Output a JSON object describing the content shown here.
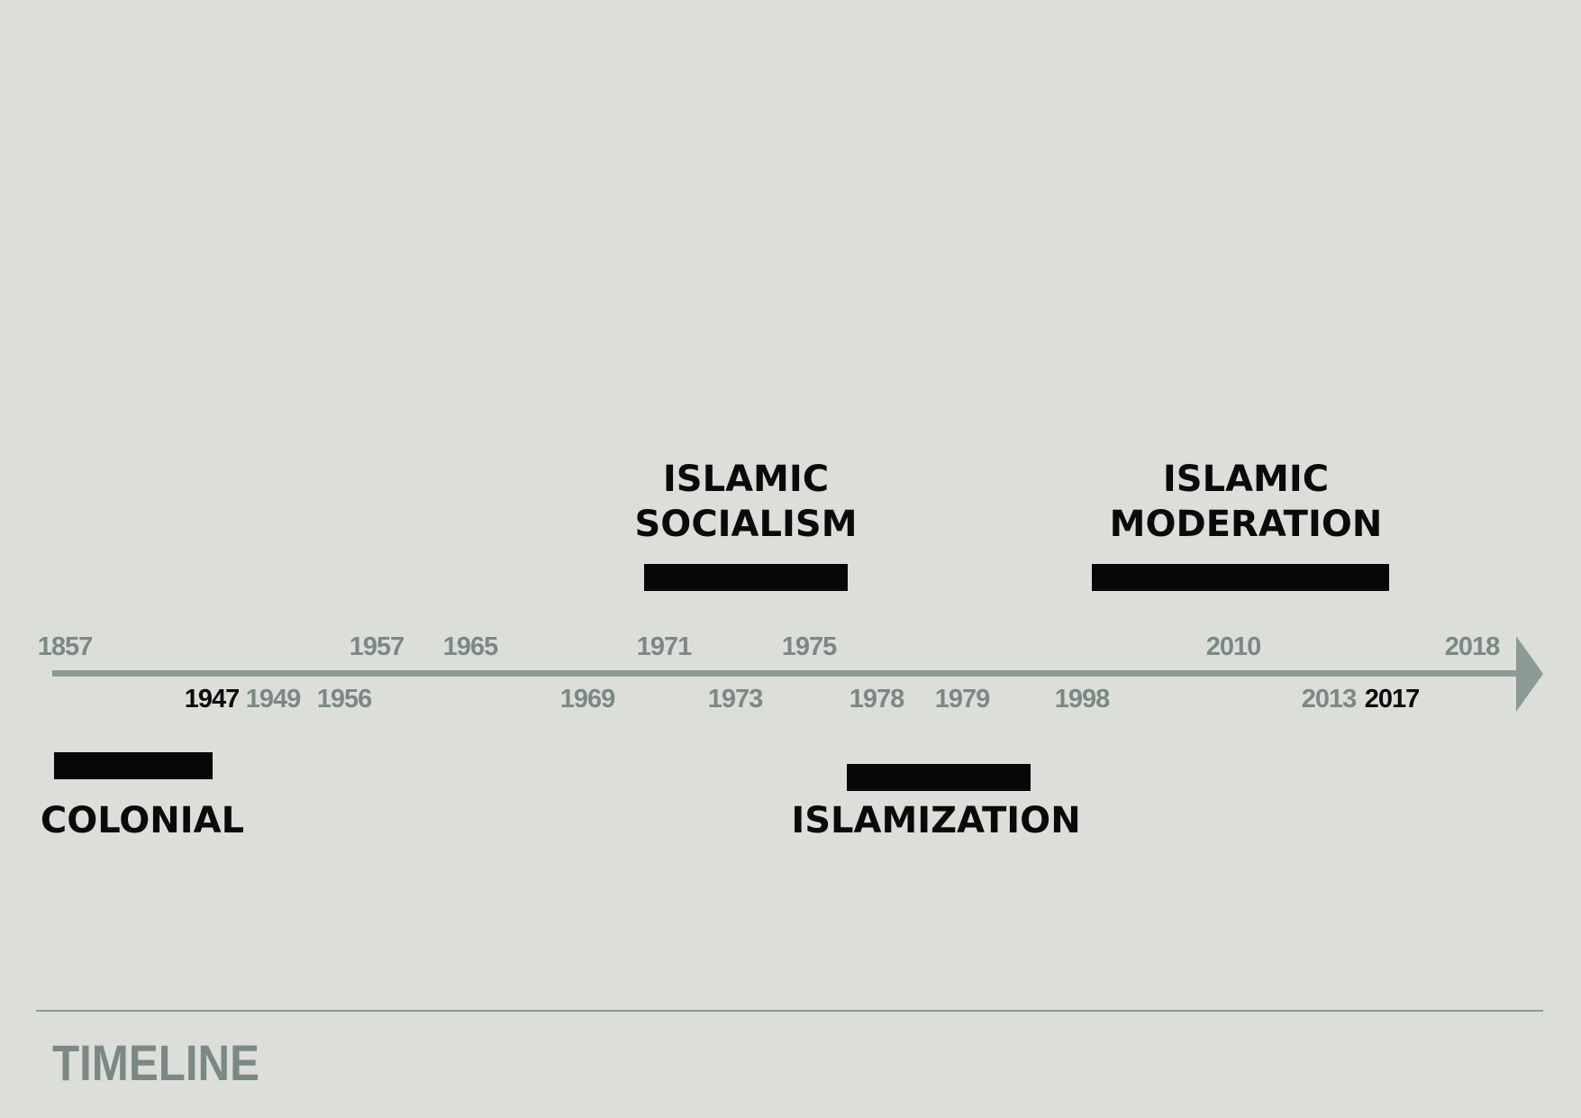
{
  "timeline": {
    "years_top": [
      {
        "label": "1857",
        "id": "1857"
      },
      {
        "label": "1957",
        "id": "1957"
      },
      {
        "label": "1965",
        "id": "1965"
      },
      {
        "label": "1971",
        "id": "1971"
      },
      {
        "label": "1975",
        "id": "1975"
      },
      {
        "label": "2010",
        "id": "2010"
      },
      {
        "label": "2018",
        "id": "2018"
      }
    ],
    "years_bottom": [
      {
        "label": "1947",
        "id": "1947",
        "emphasis": true
      },
      {
        "label": "1949",
        "id": "1949"
      },
      {
        "label": "1956",
        "id": "1956"
      },
      {
        "label": "1969",
        "id": "1969"
      },
      {
        "label": "1973",
        "id": "1973"
      },
      {
        "label": "1978",
        "id": "1978"
      },
      {
        "label": "1979",
        "id": "1979"
      },
      {
        "label": "1998",
        "id": "1998"
      },
      {
        "label": "2013",
        "id": "2013"
      },
      {
        "label": "2017",
        "id": "2017",
        "emphasis": true
      }
    ],
    "eras": [
      {
        "id": "colonial",
        "lines": [
          "COLONIAL"
        ],
        "side": "below"
      },
      {
        "id": "islamic-socialism",
        "lines": [
          "ISLAMIC",
          "SOCIALISM"
        ],
        "side": "above"
      },
      {
        "id": "islamization",
        "lines": [
          "ISLAMIZATION"
        ],
        "side": "below"
      },
      {
        "id": "islamic-moderation",
        "lines": [
          "ISLAMIC",
          "MODERATION"
        ],
        "side": "above"
      }
    ]
  },
  "footer": {
    "title": "TIMELINE"
  },
  "colors": {
    "background": "#dcdfd9",
    "axis": "#8c9a96",
    "year_text": "#7b8985",
    "emphasis": "#0b0b0b",
    "bars": "#070707"
  }
}
